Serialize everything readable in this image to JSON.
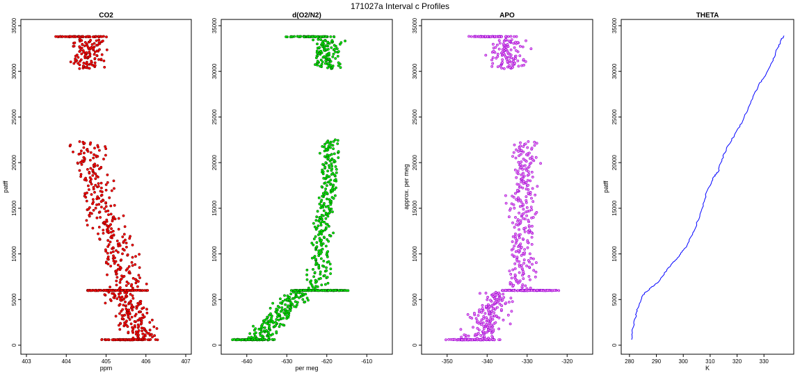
{
  "figure": {
    "title": "171027a   Interval c Profiles"
  },
  "chart_data": [
    {
      "type": "scatter",
      "title": "CO2",
      "xlabel": "ppm",
      "ylabel": "patff",
      "xlim": [
        403,
        407
      ],
      "ylim": [
        0,
        35000
      ],
      "xticks": [
        403,
        404,
        405,
        406,
        407
      ],
      "yticks": [
        0,
        5000,
        10000,
        15000,
        20000,
        25000,
        30000,
        35000
      ],
      "colors": {
        "fill": "#ff0000",
        "edge": "#800000"
      },
      "bands": [
        {
          "y": [
            600,
            600
          ],
          "center": [
            405.2,
            405.9
          ],
          "spread": 0.5,
          "n": 90
        },
        {
          "y": [
            700,
            5800
          ],
          "center": [
            405.9,
            405.4
          ],
          "spread": 0.3,
          "n": 160
        },
        {
          "y": [
            6000,
            6000
          ],
          "center": [
            404.7,
            405.8
          ],
          "spread": 0.35,
          "n": 110
        },
        {
          "y": [
            6200,
            14000
          ],
          "center": [
            405.6,
            405.0
          ],
          "spread": 0.3,
          "n": 140
        },
        {
          "y": [
            14000,
            22300
          ],
          "center": [
            404.9,
            404.5
          ],
          "spread": 0.3,
          "n": 140
        },
        {
          "y": [
            30300,
            33500
          ],
          "center": [
            404.5,
            404.5
          ],
          "spread": 0.3,
          "n": 110
        },
        {
          "y": [
            33800,
            33800
          ],
          "center": [
            403.9,
            404.7
          ],
          "spread": 0.35,
          "n": 70
        }
      ]
    },
    {
      "type": "scatter",
      "title": "d(O2/N2)",
      "xlabel": "per meg",
      "ylabel": "",
      "xlim": [
        -645,
        -605
      ],
      "ylim": [
        0,
        35000
      ],
      "xticks": [
        -640,
        -630,
        -620,
        -610
      ],
      "yticks": [
        0,
        5000,
        10000,
        15000,
        20000,
        25000,
        30000,
        35000
      ],
      "colors": {
        "fill": "#00ee00",
        "edge": "#006400"
      },
      "bands": [
        {
          "y": [
            600,
            600
          ],
          "center": [
            -641,
            -636
          ],
          "spread": 4.0,
          "n": 90
        },
        {
          "y": [
            700,
            5800
          ],
          "center": [
            -637,
            -627
          ],
          "spread": 2.5,
          "n": 170
        },
        {
          "y": [
            6000,
            6000
          ],
          "center": [
            -628,
            -616
          ],
          "spread": 3.0,
          "n": 110
        },
        {
          "y": [
            6200,
            14000
          ],
          "center": [
            -622,
            -621
          ],
          "spread": 1.8,
          "n": 120
        },
        {
          "y": [
            14000,
            22500
          ],
          "center": [
            -620,
            -619
          ],
          "spread": 1.8,
          "n": 140
        },
        {
          "y": [
            30300,
            33500
          ],
          "center": [
            -620,
            -620
          ],
          "spread": 2.5,
          "n": 110
        },
        {
          "y": [
            33800,
            33800
          ],
          "center": [
            -628,
            -621
          ],
          "spread": 3.0,
          "n": 70
        }
      ]
    },
    {
      "type": "scatter",
      "title": "APO",
      "xlabel": "",
      "ylabel": "approx. per meg",
      "xlim": [
        -355,
        -315
      ],
      "ylim": [
        0,
        35000
      ],
      "xticks": [
        -350,
        -340,
        -330,
        -320
      ],
      "yticks": [
        0,
        5000,
        10000,
        15000,
        20000,
        25000,
        30000,
        35000
      ],
      "colors": {
        "fill": "#ee82ee",
        "edge": "#9400d3"
      },
      "bands": [
        {
          "y": [
            600,
            600
          ],
          "center": [
            -347,
            -340
          ],
          "spread": 3.5,
          "n": 90
        },
        {
          "y": [
            700,
            5800
          ],
          "center": [
            -342,
            -337
          ],
          "spread": 3.0,
          "n": 170
        },
        {
          "y": [
            6000,
            6000
          ],
          "center": [
            -335,
            -324
          ],
          "spread": 3.0,
          "n": 110
        },
        {
          "y": [
            6200,
            14000
          ],
          "center": [
            -331,
            -331
          ],
          "spread": 2.2,
          "n": 130
        },
        {
          "y": [
            14000,
            22300
          ],
          "center": [
            -331,
            -331
          ],
          "spread": 2.5,
          "n": 140
        },
        {
          "y": [
            30300,
            33500
          ],
          "center": [
            -335,
            -335
          ],
          "spread": 3.0,
          "n": 110
        },
        {
          "y": [
            33800,
            33800
          ],
          "center": [
            -342,
            -336
          ],
          "spread": 3.5,
          "n": 70
        }
      ]
    },
    {
      "type": "line",
      "title": "THETA",
      "xlabel": "K",
      "ylabel": "patff",
      "xlim": [
        279,
        339
      ],
      "ylim": [
        0,
        35000
      ],
      "xticks": [
        280,
        290,
        300,
        310,
        320,
        330
      ],
      "yticks": [
        0,
        5000,
        10000,
        15000,
        20000,
        25000,
        30000,
        35000
      ],
      "colors": {
        "line": "#0000ff"
      },
      "x": [
        280.8,
        281.0,
        282.2,
        283.0,
        285.0,
        288.0,
        291.0,
        294.5,
        297.0,
        299.5,
        301.5,
        304.0,
        307.0,
        309.0,
        311.5,
        313.0,
        314.0,
        316.0,
        319.0,
        322.0,
        325.0,
        328.0,
        330.5,
        333.0,
        335.0,
        336.5,
        337.5
      ],
      "y": [
        600,
        1500,
        3000,
        4000,
        5500,
        6300,
        7000,
        8500,
        9300,
        10200,
        11000,
        12500,
        15000,
        17000,
        18500,
        19000,
        20000,
        21500,
        23000,
        24500,
        26500,
        28500,
        29500,
        31000,
        32500,
        33500,
        33900
      ]
    }
  ]
}
